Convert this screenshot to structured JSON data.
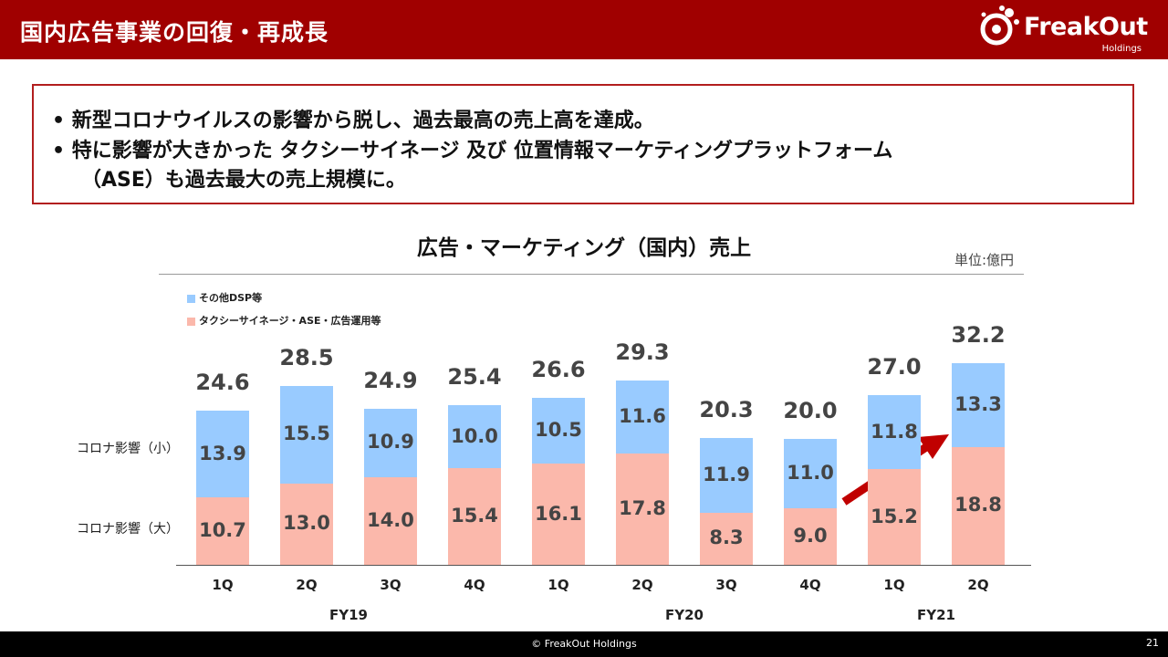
{
  "header": {
    "title": "国内広告事業の回復・再成長"
  },
  "logo": {
    "name": "FreakOut",
    "sub": "Holdings"
  },
  "messages": [
    "• 新型コロナウイルスの影響から脱し、過去最高の売上高を達成。",
    "• 特に影響が大きかった タクシーサイネージ 及び 位置情報マーケティングプラットフォーム",
    "（ASE）も過去最大の売上規模に。"
  ],
  "side_labels": {
    "small": "コロナ影響（小）",
    "large": "コロナ影響（大）"
  },
  "colors": {
    "header": "#a00000",
    "box_border": "#b21e1e",
    "other_dsp": "#99cbff",
    "taxi_ase": "#fbb8ab",
    "arrow": "#c00000"
  },
  "chart_data": {
    "type": "bar",
    "stacked": true,
    "title": "広告・マーケティング（国内）売上",
    "unit": "単位:億円",
    "categories": [
      "1Q",
      "2Q",
      "3Q",
      "4Q",
      "1Q",
      "2Q",
      "3Q",
      "4Q",
      "1Q",
      "2Q"
    ],
    "groups": [
      {
        "label": "FY19",
        "start": 0,
        "end": 3
      },
      {
        "label": "FY20",
        "start": 4,
        "end": 7
      },
      {
        "label": "FY21",
        "start": 8,
        "end": 9
      }
    ],
    "series": [
      {
        "name": "タクシーサイネージ・ASE・広告運用等",
        "values": [
          10.7,
          13.0,
          14.0,
          15.4,
          16.1,
          17.8,
          8.3,
          9.0,
          15.2,
          18.8
        ]
      },
      {
        "name": "その他DSP等",
        "values": [
          13.9,
          15.5,
          10.9,
          10.0,
          10.5,
          11.6,
          11.9,
          11.0,
          11.8,
          13.3
        ]
      }
    ],
    "totals": [
      "24.6",
      "28.5",
      "24.9",
      "25.4",
      "26.6",
      "29.3",
      "20.3",
      "20.0",
      "27.0",
      "32.2"
    ],
    "legend": "top-left",
    "grid": false
  },
  "footer": {
    "copyright": "© FreakOut Holdings",
    "page": "21"
  }
}
